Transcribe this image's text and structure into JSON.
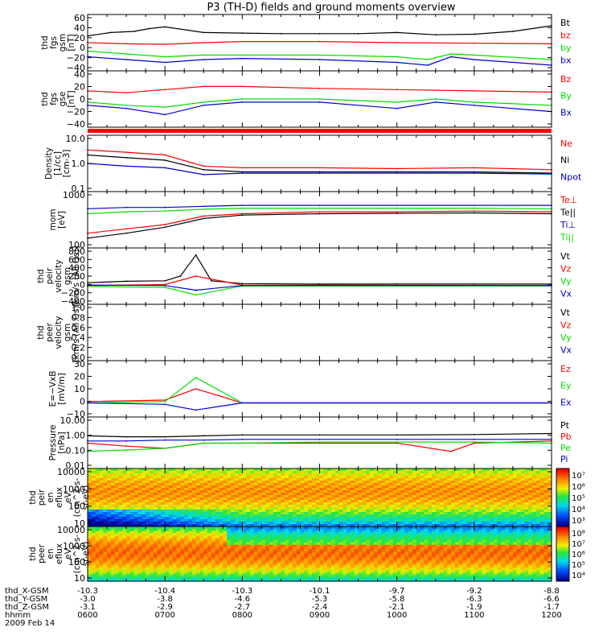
{
  "title": "P3 (TH-D) fields and ground moments overview",
  "colors": {
    "black": "#000000",
    "red": "#ff0000",
    "green": "#00dd00",
    "blue": "#0000cc"
  },
  "footer": {
    "rows": [
      {
        "label": "thd_X-GSM",
        "values": [
          "-10.3",
          "-10.4",
          "-10.3",
          "-10.1",
          "-9.7",
          "-9.2",
          "-8.8"
        ]
      },
      {
        "label": "thd_Y-GSM",
        "values": [
          "-3.0",
          "-3.8",
          "-4.6",
          "-5.3",
          "-5.8",
          "-6.3",
          "-6.6"
        ]
      },
      {
        "label": "thd_Z-GSM",
        "values": [
          "-3.1",
          "-2.9",
          "-2.7",
          "-2.4",
          "-2.1",
          "-1.9",
          "-1.7"
        ]
      },
      {
        "label": "hhmm",
        "values": [
          "0600",
          "0700",
          "0800",
          "0900",
          "1000",
          "1100",
          "1200"
        ]
      }
    ],
    "date": "2009 Feb 14"
  },
  "chart_data": [
    {
      "type": "line",
      "ylabel": [
        "thd",
        "fgs",
        "gsm",
        "[nT]"
      ],
      "ylim": [
        -40,
        60
      ],
      "yticks": [
        "60",
        "40",
        "20",
        "0",
        "−20",
        "−40"
      ],
      "legend": [
        {
          "name": "Bt",
          "color": "black"
        },
        {
          "name": "bz",
          "color": "red"
        },
        {
          "name": "by",
          "color": "green"
        },
        {
          "name": "bx",
          "color": "blue"
        }
      ],
      "series": [
        {
          "name": "Bt",
          "color": "black",
          "x": [
            6.0,
            6.3,
            6.6,
            6.8,
            7.0,
            7.5,
            8.0,
            8.5,
            9.0,
            9.5,
            10.0,
            10.5,
            11.0,
            11.5,
            12.0
          ],
          "values": [
            22,
            28,
            30,
            35,
            38,
            28,
            27,
            26,
            26,
            26,
            28,
            24,
            25,
            30,
            40
          ]
        },
        {
          "name": "bz",
          "color": "red",
          "x": [
            6.0,
            6.5,
            7.0,
            7.5,
            8.0,
            9.0,
            10.0,
            11.0,
            12.0
          ],
          "values": [
            10,
            8,
            7,
            10,
            12,
            12,
            10,
            9,
            8
          ]
        },
        {
          "name": "by",
          "color": "green",
          "x": [
            6.0,
            6.5,
            7.0,
            7.5,
            8.0,
            9.0,
            10.0,
            10.4,
            10.7,
            11.0,
            12.0
          ],
          "values": [
            -5,
            -10,
            -15,
            -12,
            -12,
            -12,
            -15,
            -20,
            -10,
            -12,
            -20
          ]
        },
        {
          "name": "bx",
          "color": "blue",
          "x": [
            6.0,
            6.5,
            7.0,
            7.5,
            8.0,
            9.0,
            10.0,
            10.4,
            10.7,
            11.0,
            12.0
          ],
          "values": [
            -15,
            -20,
            -25,
            -20,
            -18,
            -20,
            -25,
            -30,
            -15,
            -20,
            -30
          ]
        }
      ]
    },
    {
      "type": "line",
      "ylabel": [
        "thd",
        "fgs",
        "gse",
        "[nT]"
      ],
      "ylim": [
        -50,
        40
      ],
      "yticks": [
        "40",
        "20",
        "0",
        "−20",
        "−40"
      ],
      "legend": [
        {
          "name": "Bz",
          "color": "red"
        },
        {
          "name": "By",
          "color": "green"
        },
        {
          "name": "Bx",
          "color": "blue"
        }
      ],
      "series": [
        {
          "name": "Bz",
          "color": "red",
          "x": [
            6.0,
            6.5,
            7.0,
            7.5,
            8.0,
            9.0,
            10.0,
            11.0,
            12.0
          ],
          "values": [
            8,
            5,
            10,
            15,
            15,
            12,
            10,
            8,
            6
          ]
        },
        {
          "name": "By",
          "color": "green",
          "x": [
            6.0,
            6.5,
            7.0,
            7.5,
            8.0,
            9.0,
            10.0,
            10.5,
            11.0,
            12.0
          ],
          "values": [
            -10,
            -15,
            -18,
            -10,
            -5,
            -5,
            -10,
            -5,
            -10,
            -15
          ]
        },
        {
          "name": "Bx",
          "color": "blue",
          "x": [
            6.0,
            6.5,
            7.0,
            7.5,
            8.0,
            9.0,
            10.0,
            10.5,
            11.0,
            12.0
          ],
          "values": [
            -15,
            -20,
            -30,
            -15,
            -10,
            -10,
            -20,
            -10,
            -15,
            -25
          ]
        }
      ]
    },
    {
      "type": "line",
      "scale": "log",
      "ylabel": [
        "Density",
        "[1/cc]",
        "[cm-3]"
      ],
      "ylim": [
        0.1,
        10
      ],
      "yticks": [
        "10.0",
        "1.0",
        "0.1"
      ],
      "legend": [
        {
          "name": "Ne",
          "color": "red"
        },
        {
          "name": "Ni",
          "color": "black"
        },
        {
          "name": "Npot",
          "color": "blue"
        }
      ],
      "series": [
        {
          "name": "Ne",
          "color": "red",
          "x": [
            6.0,
            6.5,
            7.0,
            7.5,
            8.0,
            9.0,
            10.0,
            11.0,
            12.0
          ],
          "values": [
            3.0,
            2.5,
            2.0,
            0.8,
            0.7,
            0.7,
            0.65,
            0.7,
            0.6
          ]
        },
        {
          "name": "Ni",
          "color": "black",
          "x": [
            6.0,
            6.5,
            7.0,
            7.5,
            8.0,
            9.0,
            10.0,
            11.0,
            12.0
          ],
          "values": [
            2.0,
            1.6,
            1.3,
            0.6,
            0.5,
            0.5,
            0.5,
            0.5,
            0.45
          ]
        },
        {
          "name": "Npot",
          "color": "blue",
          "x": [
            6.0,
            6.5,
            7.0,
            7.5,
            8.0,
            9.0,
            10.0,
            11.0,
            12.0
          ],
          "values": [
            1.0,
            0.8,
            0.7,
            0.4,
            0.45,
            0.45,
            0.45,
            0.45,
            0.42
          ]
        }
      ]
    },
    {
      "type": "line",
      "scale": "log",
      "ylabel": [
        "mom",
        "[eV]"
      ],
      "ylim": [
        100,
        20000
      ],
      "yticks": [
        "1000",
        "100"
      ],
      "legend": [
        {
          "name": "Te⊥",
          "color": "red"
        },
        {
          "name": "Te||",
          "color": "black"
        },
        {
          "name": "Ti⊥",
          "color": "blue"
        },
        {
          "name": "Ti||",
          "color": "green"
        }
      ],
      "series": [
        {
          "name": "Ti⊥",
          "color": "blue",
          "x": [
            6.0,
            6.5,
            7.0,
            7.5,
            8.0,
            9.0,
            10.0,
            11.0,
            12.0
          ],
          "values": [
            4000,
            4500,
            4500,
            5000,
            5500,
            5500,
            5500,
            5500,
            5500
          ]
        },
        {
          "name": "Ti||",
          "color": "green",
          "x": [
            6.0,
            6.5,
            7.0,
            7.5,
            8.0,
            9.0,
            10.0,
            11.0,
            12.0
          ],
          "values": [
            2500,
            3000,
            3200,
            3800,
            4200,
            4200,
            4200,
            4200,
            4000
          ]
        },
        {
          "name": "Te⊥",
          "color": "red",
          "x": [
            6.0,
            6.5,
            7.0,
            7.5,
            8.0,
            9.0,
            10.0,
            11.0,
            12.0
          ],
          "values": [
            400,
            600,
            900,
            2000,
            2500,
            3000,
            3000,
            3200,
            3000
          ]
        },
        {
          "name": "Te||",
          "color": "black",
          "x": [
            6.0,
            6.5,
            7.0,
            7.5,
            8.0,
            9.0,
            10.0,
            11.0,
            12.0
          ],
          "values": [
            250,
            400,
            700,
            1600,
            2200,
            2500,
            2600,
            2700,
            2500
          ]
        }
      ]
    },
    {
      "type": "line",
      "ylabel": [
        "thd",
        "peir",
        "velocity",
        "gsm",
        "[km/s (All Qs)]"
      ],
      "ylim": [
        -400,
        800
      ],
      "yticks": [
        "800",
        "600",
        "400",
        "200",
        "0",
        "−200",
        "−400"
      ],
      "legend": [
        {
          "name": "Vt",
          "color": "black"
        },
        {
          "name": "Vz",
          "color": "red"
        },
        {
          "name": "Vy",
          "color": "green"
        },
        {
          "name": "Vx",
          "color": "blue"
        }
      ],
      "series": [
        {
          "name": "Vt",
          "color": "black",
          "x": [
            6.0,
            6.5,
            7.0,
            7.2,
            7.4,
            7.6,
            8.0,
            9.0,
            10.0,
            11.0,
            12.0
          ],
          "values": [
            60,
            90,
            100,
            200,
            650,
            100,
            40,
            30,
            30,
            30,
            30
          ]
        },
        {
          "name": "Vz",
          "color": "red",
          "x": [
            6.0,
            7.0,
            7.4,
            8.0,
            12.0
          ],
          "values": [
            0,
            20,
            200,
            10,
            0
          ]
        },
        {
          "name": "Vy",
          "color": "green",
          "x": [
            6.0,
            7.0,
            7.4,
            8.0,
            12.0
          ],
          "values": [
            -20,
            -40,
            -200,
            -10,
            -10
          ]
        },
        {
          "name": "Vx",
          "color": "blue",
          "x": [
            6.0,
            7.0,
            7.4,
            8.0,
            12.0
          ],
          "values": [
            10,
            0,
            -100,
            0,
            0
          ]
        }
      ]
    },
    {
      "type": "line",
      "ylabel": [
        "thd",
        "peer",
        "velocity",
        "gsm",
        "[km/s (All Qs)]"
      ],
      "ylim": [
        0,
        1
      ],
      "yticks": [
        "1.0",
        "0.8",
        "0.6",
        "0.4",
        "0.2",
        "0.0"
      ],
      "legend": [
        {
          "name": "Vt",
          "color": "black"
        },
        {
          "name": "Vz",
          "color": "red"
        },
        {
          "name": "Vy",
          "color": "green"
        },
        {
          "name": "Vx",
          "color": "blue"
        }
      ],
      "series": []
    },
    {
      "type": "line",
      "ylabel": [
        "E=−VxB",
        "[mV/m]"
      ],
      "ylim": [
        -10,
        30
      ],
      "yticks": [
        "30",
        "20",
        "10",
        "0",
        "−10"
      ],
      "legend": [
        {
          "name": "Ez",
          "color": "red"
        },
        {
          "name": "Ey",
          "color": "green"
        },
        {
          "name": "Ex",
          "color": "blue"
        }
      ],
      "series": [
        {
          "name": "Ez",
          "color": "red",
          "x": [
            6.0,
            7.0,
            7.4,
            8.0,
            12.0
          ],
          "values": [
            1,
            2,
            10,
            0,
            0
          ]
        },
        {
          "name": "Ey",
          "color": "green",
          "x": [
            6.0,
            7.0,
            7.4,
            8.0,
            12.0
          ],
          "values": [
            0,
            1,
            18,
            0,
            0
          ]
        },
        {
          "name": "Ex",
          "color": "blue",
          "x": [
            6.0,
            7.0,
            7.4,
            8.0,
            12.0
          ],
          "values": [
            0,
            -1,
            -5,
            0,
            0
          ]
        }
      ]
    },
    {
      "type": "line",
      "scale": "log",
      "ylabel": [
        "Pressure",
        "[nPa]"
      ],
      "ylim": [
        0.01,
        10
      ],
      "yticks": [
        "10.00",
        "1.00",
        "0.10",
        "0.01"
      ],
      "legend": [
        {
          "name": "Pt",
          "color": "black"
        },
        {
          "name": "Pb",
          "color": "red"
        },
        {
          "name": "Pe",
          "color": "green"
        },
        {
          "name": "Pi",
          "color": "blue"
        }
      ],
      "series": [
        {
          "name": "Pt",
          "color": "black",
          "x": [
            6.0,
            6.5,
            7.0,
            7.5,
            8.0,
            9.0,
            10.0,
            11.0,
            12.0
          ],
          "values": [
            0.8,
            0.7,
            0.7,
            0.8,
            0.9,
            0.9,
            0.9,
            0.95,
            1.1
          ]
        },
        {
          "name": "Pb",
          "color": "red",
          "x": [
            6.0,
            6.5,
            7.0,
            7.5,
            8.0,
            9.0,
            10.0,
            10.7,
            11.0,
            12.0
          ],
          "values": [
            0.3,
            0.2,
            0.15,
            0.3,
            0.3,
            0.3,
            0.3,
            0.1,
            0.3,
            0.4
          ]
        },
        {
          "name": "Pe",
          "color": "green",
          "x": [
            6.0,
            6.5,
            7.0,
            7.5,
            8.0,
            9.0,
            10.0,
            11.0,
            12.0
          ],
          "values": [
            0.1,
            0.12,
            0.15,
            0.3,
            0.3,
            0.35,
            0.35,
            0.35,
            0.3
          ]
        },
        {
          "name": "Pi",
          "color": "blue",
          "x": [
            6.0,
            6.5,
            7.0,
            7.5,
            8.0,
            9.0,
            10.0,
            11.0,
            12.0
          ],
          "values": [
            0.4,
            0.4,
            0.45,
            0.45,
            0.5,
            0.5,
            0.5,
            0.5,
            0.5
          ]
        }
      ]
    },
    {
      "type": "heatmap",
      "ylabel": [
        "thd",
        "peir",
        "en",
        "eflux",
        "eV",
        "(cm^2-s-",
        "sr-eV)"
      ],
      "ylim": [
        10,
        20000
      ],
      "yticks": [
        "10000",
        "1000",
        "100",
        "10"
      ],
      "colorbar": {
        "ticks": [
          "10⁷",
          "10⁶",
          "10⁵",
          "10⁴",
          "10³"
        ]
      }
    },
    {
      "type": "heatmap",
      "ylabel": [
        "thd",
        "peer",
        "en",
        "eflux",
        "eV",
        "(cm^2-s-",
        "sr-eV)"
      ],
      "ylim": [
        10,
        20000
      ],
      "yticks": [
        "10000",
        "1000",
        "100",
        "10"
      ],
      "colorbar": {
        "ticks": [
          "10⁸",
          "10⁷",
          "10⁶",
          "10⁵",
          "10⁴"
        ]
      }
    }
  ]
}
